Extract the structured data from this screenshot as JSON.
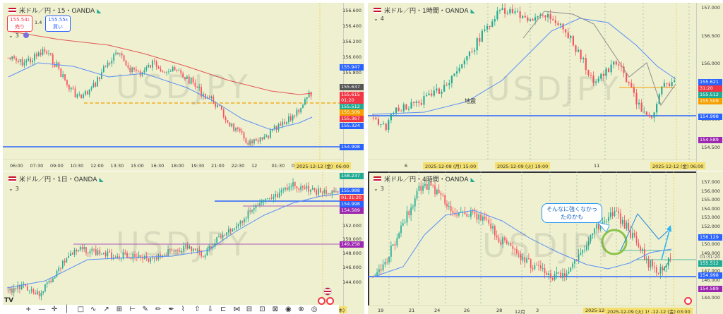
{
  "watermark": "USDJPY",
  "panels": {
    "p15": {
      "title": "米ドル／円・15・OANDA",
      "indicator_count": "3",
      "sell_price": "155.54",
      "sell_price_small": "2",
      "sell_label": "売り",
      "spread": "1.4",
      "buy_price": "155.55",
      "buy_price_small": "6",
      "buy_label": "買い",
      "yticks": [
        "156.600",
        "156.400",
        "156.200",
        "156.000",
        "155.800",
        "155.600",
        "155.400",
        "155.200"
      ],
      "tags": [
        {
          "text": "155.947",
          "color": "#2962ff"
        },
        {
          "text": "155.637",
          "color": "#555555"
        },
        {
          "text": "155.615",
          "color": "#f23645"
        },
        {
          "text": "01:20",
          "color": "#f23645"
        },
        {
          "text": "155.512",
          "color": "#22ab94"
        },
        {
          "text": "155.509",
          "color": "#f59f00"
        },
        {
          "text": "155.367",
          "color": "#f23645"
        },
        {
          "text": "155.324",
          "color": "#2962ff"
        },
        {
          "text": "154.998",
          "color": "#2962ff"
        }
      ],
      "xticks": [
        "06:00",
        "07:30",
        "09:00",
        "10:30",
        "12:00",
        "13:30",
        "15:00",
        "16:30",
        "18:00",
        "19:30",
        "21:00",
        "22:30",
        "12",
        "01:30",
        "03:00"
      ],
      "x_highlight_date": "2025-12-12 (金)",
      "x_highlight_time": "06:00"
    },
    "p1h": {
      "title": "米ドル／円・1時間・OANDA",
      "indicator_count": "4",
      "yticks": [
        "157.000",
        "156.500",
        "156.000",
        "155.500",
        "155.000",
        "154.500"
      ],
      "tags": [
        {
          "text": "155.621",
          "color": "#2962ff"
        },
        {
          "text": "31:20",
          "color": "#f23645"
        },
        {
          "text": "155.512",
          "color": "#22ab94"
        },
        {
          "text": "155.509",
          "color": "#f59f00"
        },
        {
          "text": "154.998",
          "color": "#2962ff"
        },
        {
          "text": "154.589",
          "color": "#9c27b0"
        }
      ],
      "annotation": "地震",
      "xticks": [
        "6",
        "11"
      ],
      "x_highlights": [
        "2025-12-08 (月)   15:00",
        "2025-12-09 (火)   19:00",
        "2025-12-12 (金)   06:00"
      ]
    },
    "p1d": {
      "title": "米ドル／円・1日・OANDA",
      "indicator_count": "3",
      "yticks": [
        "158.000",
        "152.000",
        "150.000",
        "148.000",
        "146.000",
        "144.000"
      ],
      "tags": [
        {
          "text": "158.237",
          "color": "#22ab94"
        },
        {
          "text": "155.988",
          "color": "#2962ff"
        },
        {
          "text": "01:31:20",
          "color": "#f23645"
        },
        {
          "text": "154.998",
          "color": "#2962ff"
        },
        {
          "text": "154.589",
          "color": "#9c27b0"
        },
        {
          "text": "149.258",
          "color": "#9c27b0"
        }
      ],
      "x_highlight": "25-12-11 (木)"
    },
    "p4h": {
      "title": "米ドル／円・4時間・OANDA",
      "indicator_count": "3",
      "yticks": [
        "157.000",
        "156.000",
        "155.000",
        "154.000",
        "153.000",
        "152.000",
        "151.000",
        "150.000",
        "149.000",
        "148.000",
        "147.000",
        "146.000",
        "145.000",
        "144.000"
      ],
      "tags": [
        {
          "text": "156.129",
          "color": "#2962ff"
        },
        {
          "text": "01:31:20",
          "color": "#888888"
        },
        {
          "text": "155.512",
          "color": "#22ab94"
        },
        {
          "text": "154.998",
          "color": "#2962ff"
        },
        {
          "text": "154.589",
          "color": "#9c27b0"
        }
      ],
      "bubble_line1": "そんなに強くなかっ",
      "bubble_line2": "たのかも",
      "xticks": [
        "19",
        "21",
        "24",
        "26",
        "28",
        "12月",
        "3"
      ],
      "x_highlights": [
        "2025-12-",
        "2025-12-09 (火)  19:00",
        "-12-12 (金)  03:00"
      ]
    }
  },
  "toolbar": {
    "logo": "TV",
    "tools": [
      "crosshair",
      "horizontal-line",
      "cross",
      "vertical-line",
      "rectangle",
      "path",
      "arrow",
      "fib",
      "ray",
      "brush",
      "pencil",
      "pen",
      "marker",
      "arrow-up",
      "arrow-down",
      "measure",
      "pattern",
      "ruler",
      "group",
      "lock",
      "eye",
      "trash",
      "target"
    ]
  }
}
